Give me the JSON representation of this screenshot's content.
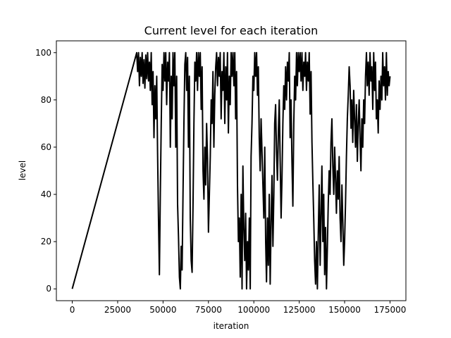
{
  "chart_data": {
    "type": "line",
    "title": "Current level for each iteration",
    "xlabel": "iteration",
    "ylabel": "level",
    "xlim": [
      -8750,
      183750
    ],
    "ylim": [
      -5,
      105
    ],
    "xticks": [
      0,
      25000,
      50000,
      75000,
      100000,
      125000,
      150000,
      175000
    ],
    "yticks": [
      0,
      20,
      40,
      60,
      80,
      100
    ],
    "grid": false,
    "color": "#000000",
    "series": [
      {
        "name": "",
        "points": [
          [
            0,
            0
          ],
          [
            35500,
            100
          ],
          [
            36000,
            92
          ],
          [
            36500,
            100
          ],
          [
            37000,
            86
          ],
          [
            37500,
            98
          ],
          [
            38000,
            90
          ],
          [
            38500,
            100
          ],
          [
            39000,
            87
          ],
          [
            39500,
            97
          ],
          [
            40000,
            85
          ],
          [
            40500,
            99
          ],
          [
            41000,
            89
          ],
          [
            41500,
            100
          ],
          [
            42000,
            88
          ],
          [
            42500,
            96
          ],
          [
            43000,
            84
          ],
          [
            43500,
            100
          ],
          [
            44000,
            78
          ],
          [
            44500,
            92
          ],
          [
            45000,
            64
          ],
          [
            45500,
            86
          ],
          [
            46000,
            72
          ],
          [
            46500,
            90
          ],
          [
            47000,
            58
          ],
          [
            47500,
            30
          ],
          [
            48000,
            6
          ],
          [
            48500,
            40
          ],
          [
            49000,
            70
          ],
          [
            49500,
            95
          ],
          [
            50000,
            84
          ],
          [
            50500,
            100
          ],
          [
            51000,
            88
          ],
          [
            51500,
            100
          ],
          [
            52000,
            78
          ],
          [
            52500,
            96
          ],
          [
            53000,
            88
          ],
          [
            53500,
            100
          ],
          [
            54000,
            60
          ],
          [
            54500,
            90
          ],
          [
            55000,
            72
          ],
          [
            55500,
            100
          ],
          [
            56000,
            86
          ],
          [
            56500,
            100
          ],
          [
            57000,
            60
          ],
          [
            57500,
            90
          ],
          [
            58000,
            36
          ],
          [
            58500,
            22
          ],
          [
            59000,
            5
          ],
          [
            59500,
            0
          ],
          [
            60000,
            18
          ],
          [
            60500,
            8
          ],
          [
            61000,
            40
          ],
          [
            61500,
            70
          ],
          [
            62000,
            95
          ],
          [
            62500,
            100
          ],
          [
            63000,
            84
          ],
          [
            63500,
            98
          ],
          [
            64000,
            60
          ],
          [
            64500,
            90
          ],
          [
            65000,
            30
          ],
          [
            65500,
            12
          ],
          [
            66000,
            7
          ],
          [
            66500,
            35
          ],
          [
            67000,
            70
          ],
          [
            67500,
            96
          ],
          [
            68000,
            88
          ],
          [
            68500,
            100
          ],
          [
            69000,
            84
          ],
          [
            69500,
            100
          ],
          [
            70000,
            90
          ],
          [
            70500,
            100
          ],
          [
            71000,
            76
          ],
          [
            71500,
            94
          ],
          [
            72000,
            50
          ],
          [
            72500,
            38
          ],
          [
            73000,
            60
          ],
          [
            73500,
            44
          ],
          [
            74000,
            70
          ],
          [
            74500,
            55
          ],
          [
            75000,
            24
          ],
          [
            75500,
            40
          ],
          [
            76000,
            56
          ],
          [
            76500,
            80
          ],
          [
            77000,
            70
          ],
          [
            77500,
            92
          ],
          [
            78000,
            60
          ],
          [
            78500,
            82
          ],
          [
            79000,
            94
          ],
          [
            79500,
            100
          ],
          [
            80000,
            86
          ],
          [
            80500,
            98
          ],
          [
            81000,
            90
          ],
          [
            81500,
            100
          ],
          [
            82000,
            72
          ],
          [
            82500,
            92
          ],
          [
            83000,
            84
          ],
          [
            83500,
            100
          ],
          [
            84000,
            70
          ],
          [
            84500,
            94
          ],
          [
            85000,
            80
          ],
          [
            85500,
            100
          ],
          [
            86000,
            66
          ],
          [
            86500,
            90
          ],
          [
            87000,
            78
          ],
          [
            87500,
            100
          ],
          [
            88000,
            90
          ],
          [
            88500,
            100
          ],
          [
            89000,
            86
          ],
          [
            89500,
            100
          ],
          [
            90000,
            72
          ],
          [
            90500,
            92
          ],
          [
            91000,
            44
          ],
          [
            91500,
            20
          ],
          [
            92000,
            30
          ],
          [
            92500,
            5
          ],
          [
            93000,
            40
          ],
          [
            93500,
            0
          ],
          [
            94000,
            52
          ],
          [
            94500,
            26
          ],
          [
            95000,
            12
          ],
          [
            95500,
            32
          ],
          [
            96000,
            0
          ],
          [
            96500,
            20
          ],
          [
            97000,
            8
          ],
          [
            97500,
            30
          ],
          [
            98000,
            0
          ],
          [
            98500,
            56
          ],
          [
            99000,
            70
          ],
          [
            99500,
            90
          ],
          [
            100000,
            84
          ],
          [
            100500,
            100
          ],
          [
            101000,
            90
          ],
          [
            101500,
            100
          ],
          [
            102000,
            82
          ],
          [
            102500,
            94
          ],
          [
            103000,
            64
          ],
          [
            103500,
            50
          ],
          [
            104000,
            72
          ],
          [
            104500,
            58
          ],
          [
            105000,
            44
          ],
          [
            105500,
            30
          ],
          [
            106000,
            60
          ],
          [
            106500,
            20
          ],
          [
            107000,
            3
          ],
          [
            107500,
            30
          ],
          [
            108000,
            10
          ],
          [
            108500,
            40
          ],
          [
            109000,
            2
          ],
          [
            109500,
            28
          ],
          [
            110000,
            48
          ],
          [
            110500,
            18
          ],
          [
            111000,
            40
          ],
          [
            111500,
            70
          ],
          [
            112000,
            78
          ],
          [
            112500,
            58
          ],
          [
            113000,
            46
          ],
          [
            113500,
            66
          ],
          [
            114000,
            80
          ],
          [
            114500,
            54
          ],
          [
            115000,
            30
          ],
          [
            115500,
            46
          ],
          [
            116000,
            70
          ],
          [
            116500,
            86
          ],
          [
            117000,
            76
          ],
          [
            117500,
            94
          ],
          [
            118000,
            80
          ],
          [
            118500,
            96
          ],
          [
            119000,
            88
          ],
          [
            119500,
            100
          ],
          [
            120000,
            64
          ],
          [
            120500,
            80
          ],
          [
            121000,
            54
          ],
          [
            121500,
            35
          ],
          [
            122000,
            70
          ],
          [
            122500,
            90
          ],
          [
            123000,
            80
          ],
          [
            123500,
            100
          ],
          [
            124000,
            86
          ],
          [
            124500,
            100
          ],
          [
            125000,
            92
          ],
          [
            125500,
            100
          ],
          [
            126000,
            88
          ],
          [
            126500,
            100
          ],
          [
            127000,
            84
          ],
          [
            127500,
            96
          ],
          [
            128000,
            90
          ],
          [
            128500,
            100
          ],
          [
            129000,
            84
          ],
          [
            129500,
            96
          ],
          [
            130000,
            88
          ],
          [
            130500,
            100
          ],
          [
            131000,
            74
          ],
          [
            131500,
            92
          ],
          [
            132000,
            62
          ],
          [
            132500,
            46
          ],
          [
            133000,
            30
          ],
          [
            133500,
            12
          ],
          [
            134000,
            2
          ],
          [
            134500,
            20
          ],
          [
            135000,
            0
          ],
          [
            135500,
            24
          ],
          [
            136000,
            44
          ],
          [
            136500,
            10
          ],
          [
            137000,
            30
          ],
          [
            137500,
            52
          ],
          [
            138000,
            20
          ],
          [
            138500,
            40
          ],
          [
            139000,
            6
          ],
          [
            139500,
            26
          ],
          [
            140000,
            0
          ],
          [
            140500,
            18
          ],
          [
            141000,
            36
          ],
          [
            141500,
            50
          ],
          [
            142000,
            40
          ],
          [
            142500,
            62
          ],
          [
            143000,
            72
          ],
          [
            143500,
            52
          ],
          [
            144000,
            40
          ],
          [
            144500,
            60
          ],
          [
            145000,
            46
          ],
          [
            145500,
            32
          ],
          [
            146000,
            50
          ],
          [
            146500,
            38
          ],
          [
            147000,
            56
          ],
          [
            147500,
            30
          ],
          [
            148000,
            20
          ],
          [
            148500,
            44
          ],
          [
            149000,
            28
          ],
          [
            149500,
            10
          ],
          [
            150000,
            20
          ],
          [
            150500,
            36
          ],
          [
            151000,
            56
          ],
          [
            151500,
            72
          ],
          [
            152000,
            82
          ],
          [
            152500,
            94
          ],
          [
            153000,
            86
          ],
          [
            153500,
            68
          ],
          [
            154000,
            80
          ],
          [
            154500,
            62
          ],
          [
            155000,
            84
          ],
          [
            155500,
            72
          ],
          [
            156000,
            60
          ],
          [
            156500,
            78
          ],
          [
            157000,
            54
          ],
          [
            157500,
            70
          ],
          [
            158000,
            80
          ],
          [
            158500,
            64
          ],
          [
            159000,
            50
          ],
          [
            159500,
            72
          ],
          [
            160000,
            60
          ],
          [
            160500,
            80
          ],
          [
            161000,
            70
          ],
          [
            161500,
            90
          ],
          [
            162000,
            100
          ],
          [
            162500,
            86
          ],
          [
            163000,
            96
          ],
          [
            163500,
            82
          ],
          [
            164000,
            100
          ],
          [
            164500,
            88
          ],
          [
            165000,
            94
          ],
          [
            165500,
            76
          ],
          [
            166000,
            100
          ],
          [
            166500,
            84
          ],
          [
            167000,
            96
          ],
          [
            167500,
            72
          ],
          [
            168000,
            80
          ],
          [
            168500,
            66
          ],
          [
            169000,
            88
          ],
          [
            169500,
            76
          ],
          [
            170000,
            90
          ],
          [
            170500,
            80
          ],
          [
            171000,
            100
          ],
          [
            171500,
            86
          ],
          [
            172000,
            94
          ],
          [
            172500,
            80
          ],
          [
            173000,
            100
          ],
          [
            173500,
            82
          ],
          [
            174000,
            92
          ],
          [
            174500,
            86
          ],
          [
            175000,
            90
          ]
        ]
      }
    ]
  }
}
